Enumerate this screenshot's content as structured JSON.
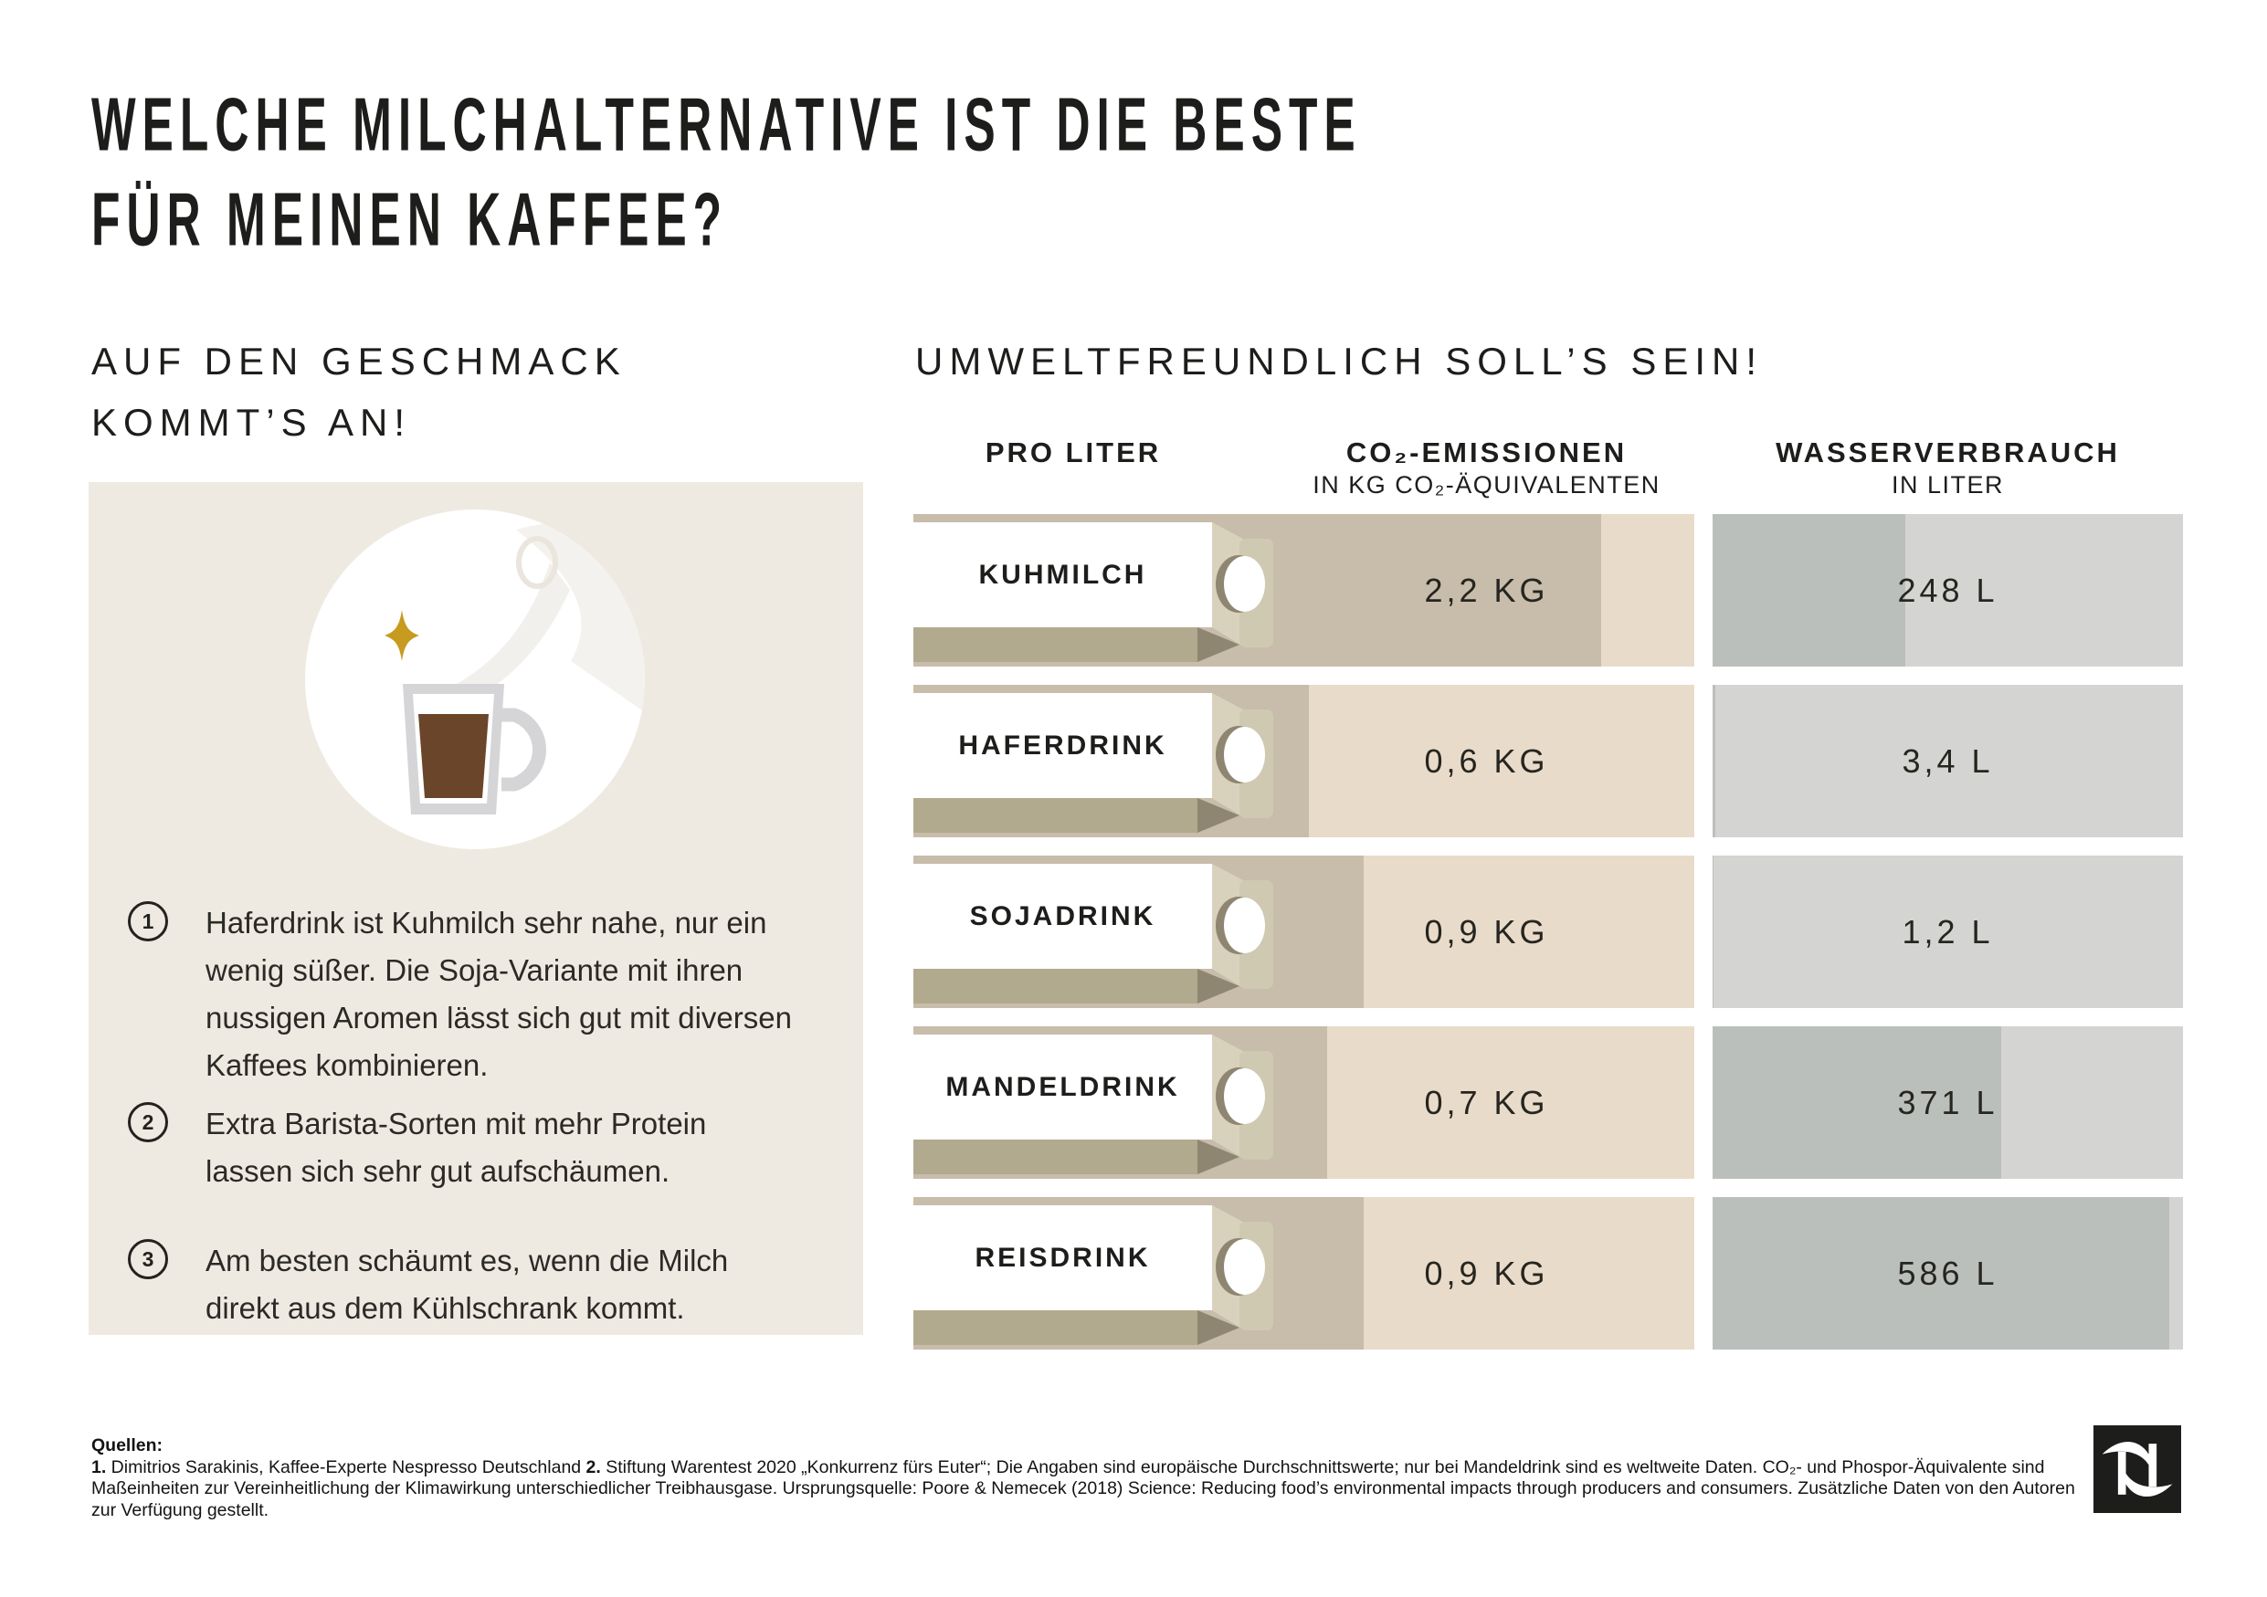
{
  "title": {
    "line1": "WELCHE MILCHALTERNATIVE IST DIE BESTE",
    "line2": "FÜR MEINEN KAFFEE?"
  },
  "taste_section": {
    "heading_line1": "AUF DEN GESCHMACK",
    "heading_line2": "KOMMT’S AN!",
    "illustration": "milk-pour-into-latte-glass-with-gold-sparkle",
    "tips": [
      {
        "number": "1",
        "text": "Haferdrink ist Kuhmilch sehr nahe, nur ein wenig süßer. Die Soja-Variante mit ihren nussigen Aromen lässt sich gut mit diversen Kaffees kombinieren."
      },
      {
        "number": "2",
        "text": "Extra Barista-Sorten mit mehr Protein lassen sich sehr gut aufschäumen."
      },
      {
        "number": "3",
        "text": "Am besten schäumt es, wenn die Milch direkt aus dem Kühlschrank kommt."
      }
    ]
  },
  "eco_section": {
    "heading": "UMWELTFREUNDLICH SOLL’S SEIN!",
    "columns": {
      "product": "PRO LITER",
      "co2": "CO₂-EMISSIONEN",
      "co2_sub": "IN KG CO₂-ÄQUIVALENTEN",
      "water": "WASSERVERBRAUCH",
      "water_sub": "IN LITER"
    },
    "rows": [
      {
        "product": "KUHMILCH",
        "co2_label": "2,2 KG",
        "water_label": "248 L",
        "co2_fill_pct": 88.1,
        "water_fill_pct": 41.0
      },
      {
        "product": "HAFERDRINK",
        "co2_label": "0,6 KG",
        "water_label": "3,4 L",
        "co2_fill_pct": 50.6,
        "water_fill_pct": 0.66
      },
      {
        "product": "SOJADRINK",
        "co2_label": "0,9 KG",
        "water_label": "1,2 L",
        "co2_fill_pct": 57.7,
        "water_fill_pct": 0.23
      },
      {
        "product": "MANDELDRINK",
        "co2_label": "0,7 KG",
        "water_label": "371 L",
        "co2_fill_pct": 53.0,
        "water_fill_pct": 61.3
      },
      {
        "product": "REISDRINK",
        "co2_label": "0,9 KG",
        "water_label": "586 L",
        "co2_fill_pct": 57.7,
        "water_fill_pct": 97.0
      }
    ]
  },
  "chart_data": {
    "type": "bar",
    "orientation": "horizontal",
    "title": "UMWELTFREUNDLICH SOLL’S SEIN!",
    "categories": [
      "Kuhmilch",
      "Haferdrink",
      "Sojadrink",
      "Mandeldrink",
      "Reisdrink"
    ],
    "series": [
      {
        "name": "CO₂-Emissionen in kg CO₂-Äquivalenten pro Liter",
        "values": [
          2.2,
          0.6,
          0.9,
          0.7,
          0.9
        ],
        "unit": "kg"
      },
      {
        "name": "Wasserverbrauch in Liter pro Liter",
        "values": [
          248,
          3.4,
          1.2,
          371,
          586
        ],
        "unit": "L"
      }
    ],
    "legend_position": "column-headers",
    "grid": false
  },
  "footer": {
    "quellen_label": "Quellen:",
    "source1_marker": "1.",
    "source1": " Dimitrios Sarakinis, Kaffee-Experte Nespresso Deutschland  ",
    "source2_marker": "2.",
    "source2": " Stiftung Warentest 2020 „Konkurrenz fürs Euter“; Die Angaben sind europäische Durchschnittswerte; nur bei Mandeldrink sind es weltweite Daten. CO₂- und Phospor-Äquivalente sind Maßeinheiten zur Vereinheitlichung der Klimawirkung unterschiedlicher Treibhausgase. Ursprungsquelle: Poore & Nemecek (2018) Science: Reducing food’s environmental impacts through producers and consumers. Zusätzliche Daten von den Autoren zur Verfügung gestellt."
  },
  "logo": {
    "name": "Nespresso N logo"
  },
  "colors": {
    "ink": "#1d1d1b",
    "panel_bg": "#efeae1",
    "co2_track": "#e9dbca",
    "co2_fill": "#c8bcab",
    "water_track": "#d4d5d2",
    "water_fill": "#bbbfbc",
    "carton_bottom": "#b2aa8e",
    "carton_shadow": "#8e8671",
    "carton_gable": "#d8d2bd",
    "carton_flap": "#cfc9b1",
    "coffee_brown": "#6b4529",
    "glass_gray": "#d5d5d7",
    "sparkle_gold": "#c79b20",
    "logo_bg": "#1d1d1b"
  }
}
